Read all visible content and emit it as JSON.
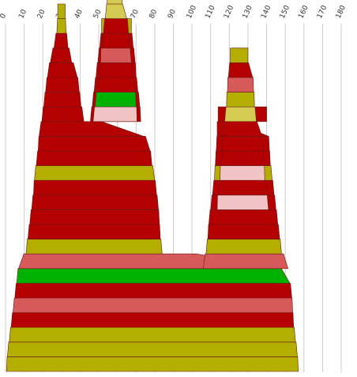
{
  "chart_data": {
    "type": "area",
    "title": "",
    "xlabel": "",
    "ylabel": "",
    "xlim": [
      0,
      180
    ],
    "grid": true,
    "x_ticks": [
      "0",
      "10",
      "20",
      "30",
      "40",
      "50",
      "60",
      "70",
      "80",
      "90",
      "100",
      "110",
      "120",
      "130",
      "140",
      "150",
      "160",
      "170",
      "180"
    ],
    "colors": {
      "red": "#b50000",
      "pink": "#d65a5a",
      "light_pink": "#f0c4c4",
      "olive": "#b3ae00",
      "light_olive": "#d4cc52",
      "green": "#00b200"
    },
    "layers": [
      {
        "level": 1,
        "color": "olive",
        "segments": [
          [
            0.5,
            157
          ]
        ]
      },
      {
        "level": 2,
        "color": "olive",
        "segments": [
          [
            1,
            156.5
          ]
        ]
      },
      {
        "level": 3,
        "color": "olive",
        "segments": [
          [
            2,
            155.5
          ]
        ]
      },
      {
        "level": 4,
        "color": "red",
        "segments": [
          [
            3,
            154.5
          ]
        ]
      },
      {
        "level": 5,
        "color": "pink",
        "segments": [
          [
            4,
            154
          ]
        ]
      },
      {
        "level": 6,
        "color": "red",
        "segments": [
          [
            5,
            153.5
          ]
        ]
      },
      {
        "level": 7,
        "color": "green",
        "segments": [
          [
            6,
            152.5
          ]
        ]
      },
      {
        "level": 8,
        "color": "pink",
        "segments": [
          [
            7,
            146
          ],
          [
            106,
            151.5
          ]
        ]
      },
      {
        "level": 9,
        "color": "olive",
        "segments": [
          [
            11,
            84
          ],
          [
            107.5,
            148
          ]
        ]
      },
      {
        "level": 10,
        "color": "red",
        "segments": [
          [
            12,
            83
          ],
          [
            108.5,
            147
          ]
        ]
      },
      {
        "level": 11,
        "color": "red",
        "segments": [
          [
            13,
            82.5
          ],
          [
            109,
            146
          ]
        ]
      },
      {
        "level": 12,
        "color": "red",
        "segments": [
          [
            14,
            82
          ],
          [
            110,
            145
          ]
        ]
      },
      {
        "level": 13,
        "color": "red",
        "segments": [
          [
            15,
            81
          ],
          [
            111,
            144
          ]
        ]
      },
      {
        "level": 14,
        "color": "olive",
        "segments": [
          [
            15.5,
            80
          ],
          [
            112,
            143
          ]
        ]
      },
      {
        "level": 15,
        "color": "red",
        "segments": [
          [
            16.5,
            78.5
          ],
          [
            112.5,
            142
          ]
        ]
      },
      {
        "level": 16,
        "color": "red",
        "segments": [
          [
            17.5,
            77.5
          ],
          [
            113,
            141.5
          ]
        ]
      },
      {
        "level": 17,
        "color": "red",
        "segments": [
          [
            18,
            74
          ],
          [
            113.5,
            141
          ]
        ]
      },
      {
        "level": 18,
        "color": "red",
        "segments": [
          [
            19.5,
            42
          ],
          [
            45.5,
            72.5
          ],
          [
            114,
            140
          ]
        ]
      },
      {
        "level": 19,
        "color": "red",
        "segments": [
          [
            20.5,
            40.5
          ],
          [
            46.5,
            72
          ]
        ]
      },
      {
        "level": 20,
        "color": "red",
        "segments": [
          [
            21.5,
            39.5
          ],
          [
            47.5,
            71
          ]
        ]
      },
      {
        "level": 21,
        "color": "red",
        "segments": [
          [
            22.5,
            38.5
          ],
          [
            48.5,
            70
          ]
        ]
      },
      {
        "level": 22,
        "color": "red",
        "segments": [
          [
            24,
            35.5
          ],
          [
            49.5,
            69.5
          ]
        ]
      },
      {
        "level": 23,
        "color": "red",
        "segments": [
          [
            26,
            33.5
          ],
          [
            50.5,
            68.5
          ]
        ]
      },
      {
        "level": 24,
        "color": "olive",
        "segments": [
          [
            27.5,
            32.5
          ],
          [
            51.5,
            67.5
          ]
        ]
      },
      {
        "level": 25,
        "color": "olive",
        "segments": [
          [
            28,
            32
          ]
        ]
      }
    ],
    "peak_stack": {
      "left": [
        {
          "color": "light_pink",
          "range": [
            47,
            70.5
          ]
        },
        {
          "color": "green",
          "range": [
            48,
            70
          ]
        },
        {
          "color": "red",
          "range": [
            49,
            69.5
          ]
        },
        {
          "color": "red",
          "range": [
            50,
            68.5
          ]
        },
        {
          "color": "pink",
          "range": [
            51,
            67.5
          ]
        },
        {
          "color": "red",
          "range": [
            51.5,
            66.5
          ]
        },
        {
          "color": "red",
          "range": [
            52.5,
            66
          ]
        },
        {
          "color": "light_olive",
          "range": [
            53.5,
            65
          ]
        },
        {
          "color": "light_olive",
          "range": [
            54.5,
            62.5
          ]
        }
      ],
      "right": [
        {
          "color": "light_pink",
          "range": [
            113.5,
            141
          ]
        },
        {
          "color": "red",
          "range": [
            114,
            140
          ]
        },
        {
          "color": "light_pink",
          "range": [
            115,
            139
          ]
        },
        {
          "color": "red",
          "range": [
            115.5,
            138.5
          ]
        },
        {
          "color": "red",
          "range": [
            116,
            138
          ]
        },
        {
          "color": "red",
          "range": [
            116.5,
            137.5
          ]
        },
        {
          "color": "light_olive",
          "range": [
            117.5,
            134.5
          ]
        },
        {
          "color": "olive",
          "range": [
            118.5,
            133.5
          ]
        },
        {
          "color": "pink",
          "range": [
            119,
            133
          ]
        },
        {
          "color": "red",
          "range": [
            119.5,
            132.5
          ]
        },
        {
          "color": "olive",
          "range": [
            120.5,
            130
          ]
        }
      ]
    }
  }
}
